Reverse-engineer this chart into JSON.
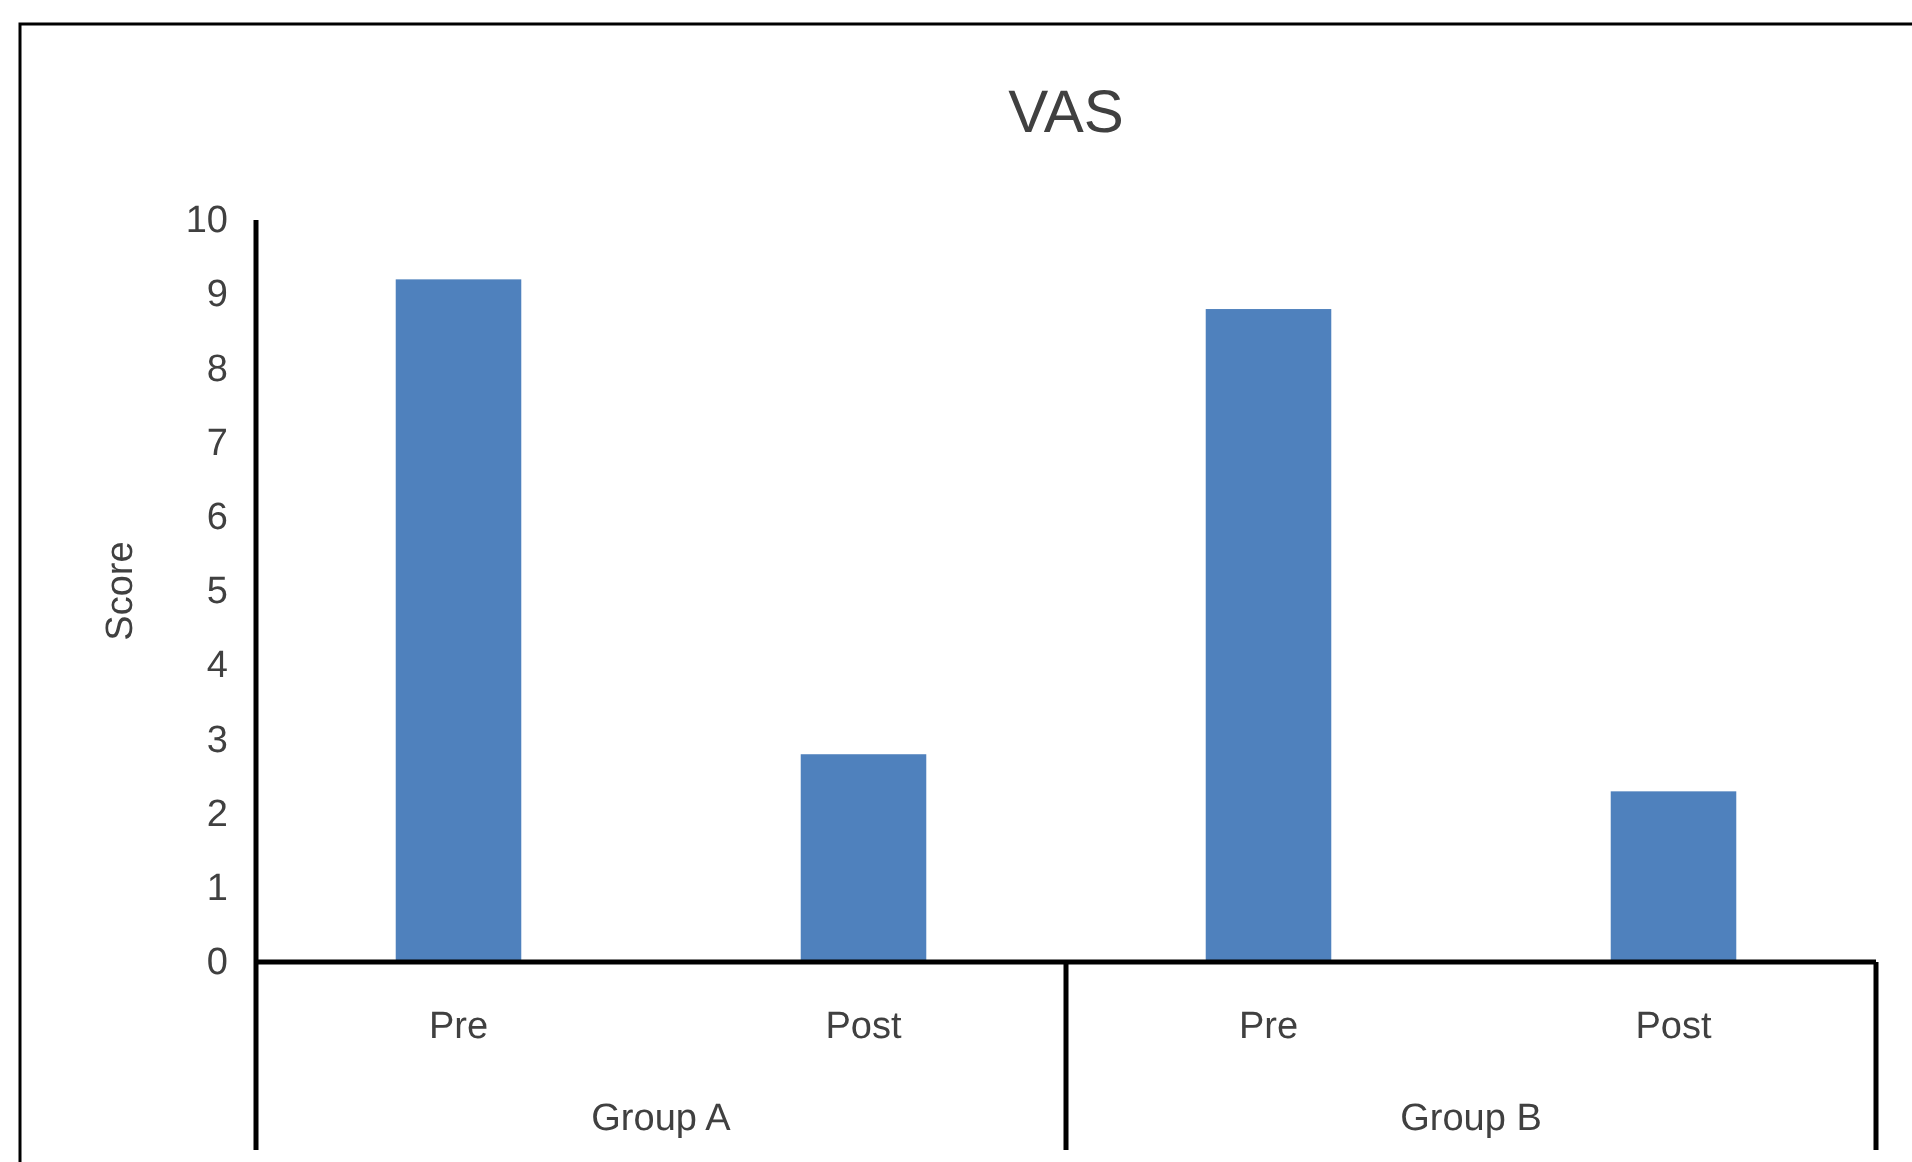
{
  "chart_data": {
    "type": "bar",
    "title": "VAS",
    "ylabel": "Score",
    "categories": [
      "Pre",
      "Post",
      "Pre",
      "Post"
    ],
    "values": [
      9.2,
      2.8,
      8.8,
      2.3
    ],
    "color": "#4f81bd",
    "ylim": [
      0,
      10
    ],
    "yticks": [
      0,
      1,
      2,
      3,
      4,
      5,
      6,
      7,
      8,
      9,
      10
    ],
    "grid": false,
    "annotations": [
      "Group A",
      "Group B"
    ]
  }
}
